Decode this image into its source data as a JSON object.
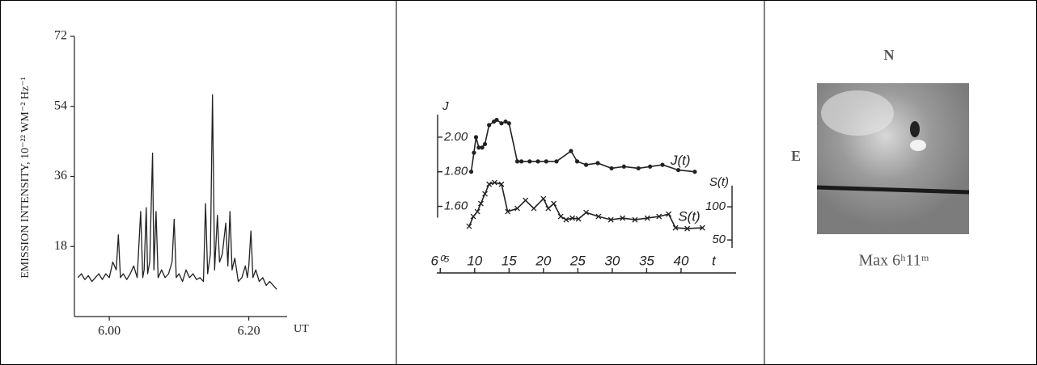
{
  "chart_data": [
    {
      "type": "line",
      "ylabel": "EMISSION INTENSITY, 10⁻²² WM⁻² Hz⁻¹",
      "xlabel": "UT",
      "color": "#222222",
      "x": [
        5.955,
        5.96,
        5.965,
        5.97,
        5.975,
        5.98,
        5.985,
        5.99,
        5.995,
        6.0,
        6.005,
        6.01,
        6.013,
        6.016,
        6.02,
        6.025,
        6.03,
        6.035,
        6.04,
        6.045,
        6.048,
        6.05,
        6.053,
        6.055,
        6.058,
        6.062,
        6.064,
        6.067,
        6.07,
        6.075,
        6.08,
        6.085,
        6.09,
        6.093,
        6.096,
        6.1,
        6.105,
        6.11,
        6.115,
        6.12,
        6.125,
        6.13,
        6.135,
        6.138,
        6.141,
        6.145,
        6.148,
        6.151,
        6.155,
        6.158,
        6.162,
        6.167,
        6.17,
        6.173,
        6.176,
        6.18,
        6.185,
        6.19,
        6.195,
        6.198,
        6.2,
        6.203,
        6.206,
        6.21,
        6.215,
        6.22,
        6.225,
        6.23,
        6.235,
        6.24
      ],
      "values": [
        10,
        11,
        9.5,
        10.5,
        9,
        10,
        11,
        9.5,
        11,
        10,
        14,
        12,
        21,
        10,
        11,
        9.5,
        11,
        13,
        10,
        27,
        10,
        12,
        28,
        11,
        14,
        42,
        12,
        27,
        10,
        12,
        10,
        11,
        14,
        25,
        10,
        11,
        9,
        12,
        10,
        11,
        9.5,
        10,
        9,
        29,
        11,
        16,
        57,
        12,
        26,
        14,
        16,
        24,
        13,
        27,
        12,
        15,
        9,
        10,
        13,
        10,
        13,
        22,
        10,
        12,
        9,
        10,
        8,
        9,
        8,
        7
      ],
      "xlim": [
        5.95,
        6.255
      ],
      "ylim": [
        0,
        72
      ],
      "xticks": [
        {
          "value": 6.0,
          "label": "6.00"
        },
        {
          "value": 6.2,
          "label": "6.20"
        }
      ],
      "yticks": [
        18,
        36,
        54,
        72
      ]
    },
    {
      "type": "line",
      "ylabel": "J",
      "y2label": "S(t)",
      "xlabel": "t",
      "series": [
        {
          "name": "J(t)",
          "color": "#222222",
          "marker": "dot",
          "x": [
            9.5,
            9.9,
            10.2,
            10.6,
            11.1,
            11.5,
            12.1,
            12.8,
            13.2,
            13.9,
            14.5,
            15.0,
            16.2,
            16.8,
            18.0,
            19.2,
            20.4,
            21.9,
            24.0,
            24.9,
            26.2,
            27.9,
            29.9,
            31.7,
            33.8,
            35.5,
            37.3,
            39.6,
            42.0
          ],
          "values": [
            1.8,
            1.91,
            2.0,
            1.94,
            1.94,
            1.96,
            2.07,
            2.09,
            2.1,
            2.08,
            2.09,
            2.08,
            1.86,
            1.86,
            1.86,
            1.86,
            1.86,
            1.86,
            1.92,
            1.86,
            1.84,
            1.85,
            1.82,
            1.83,
            1.82,
            1.83,
            1.84,
            1.81,
            1.8
          ]
        },
        {
          "name": "S(t)",
          "color": "#222222",
          "marker": "cross",
          "axis": "y2",
          "x": [
            9.2,
            9.8,
            10.4,
            10.9,
            11.5,
            12.1,
            12.9,
            13.9,
            14.8,
            16.2,
            17.4,
            18.6,
            20.0,
            20.7,
            21.5,
            22.5,
            23.3,
            24.2,
            25.1,
            26.2,
            28.0,
            29.8,
            31.5,
            33.3,
            35.1,
            36.8,
            38.2,
            39.2,
            40.9,
            43.1
          ],
          "values": [
            70.7,
            85.4,
            92.7,
            104.9,
            119.5,
            134.1,
            136.6,
            134.1,
            92.7,
            97.6,
            109.8,
            97.6,
            112.2,
            97.6,
            104.9,
            85.4,
            80.5,
            82.9,
            81.7,
            91.5,
            85.4,
            80.5,
            82.9,
            80.5,
            82.9,
            85.4,
            89.0,
            68.3,
            67.1,
            68.3
          ]
        }
      ],
      "xlim": [
        4.5,
        48
      ],
      "ylim": [
        1.36,
        2.13
      ],
      "y2lim": [
        38,
        239
      ],
      "xticks": [
        {
          "value": 5,
          "label": "6⁰⁵"
        },
        10,
        15,
        20,
        25,
        30,
        35,
        40
      ],
      "yticks": [
        {
          "value": 1.6,
          "label": "1.60"
        },
        {
          "value": 1.8,
          "label": "1.80"
        },
        {
          "value": 2.0,
          "label": "2.00"
        }
      ],
      "y2ticks": [
        50,
        100
      ]
    }
  ],
  "figure_panel": {
    "north": "N",
    "east": "E",
    "caption": "Max 6ʰ11ᵐ"
  }
}
